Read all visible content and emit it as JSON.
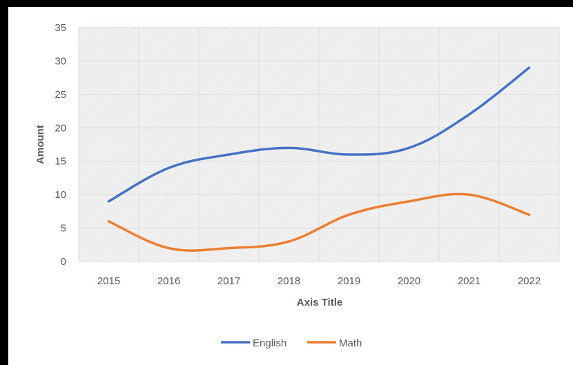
{
  "chart_data": {
    "type": "line",
    "x": [
      "2015",
      "2016",
      "2017",
      "2018",
      "2019",
      "2020",
      "2021",
      "2022"
    ],
    "series": [
      {
        "name": "English",
        "values": [
          9,
          14,
          16,
          17,
          16,
          17,
          22,
          29
        ],
        "color": "#4472c4"
      },
      {
        "name": "Math",
        "values": [
          6,
          2,
          2,
          3,
          7,
          9,
          10,
          7
        ],
        "color": "#ed7d31"
      }
    ],
    "xlabel": "Axis Title",
    "ylabel": "Amount",
    "ylim": [
      0,
      35
    ],
    "yticks": [
      0,
      5,
      10,
      15,
      20,
      25,
      30,
      35
    ],
    "grid": true,
    "legend_position": "bottom",
    "colors": {
      "plot_background": "#efefef",
      "gridline": "#d9d9d9",
      "text": "#595959",
      "frame": "#000000"
    }
  }
}
